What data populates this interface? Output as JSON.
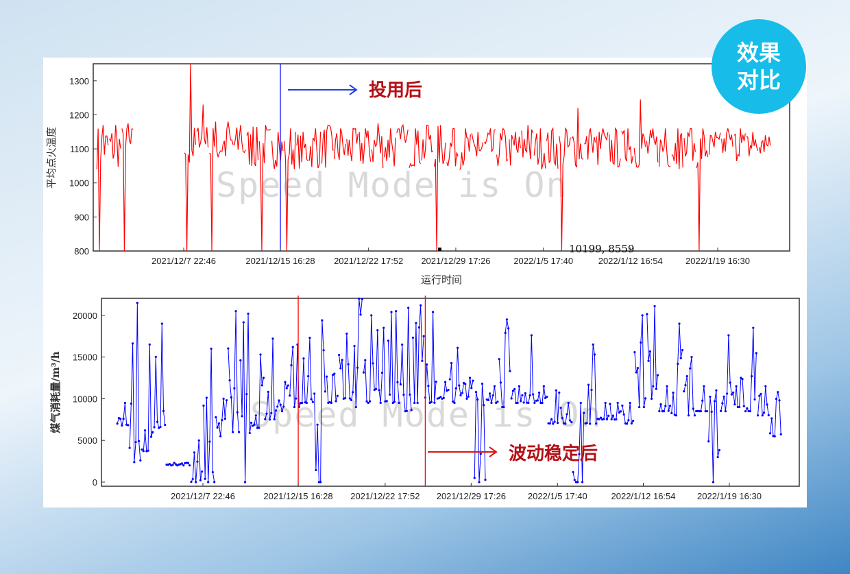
{
  "badge": {
    "line1": "效果",
    "line2": "对比",
    "color": "#17bde8"
  },
  "chart_data": [
    {
      "type": "line",
      "ylabel": "平均点火温度",
      "xlabel": "运行时间",
      "ylim": [
        800,
        1350
      ],
      "y_ticks": [
        "800",
        "900",
        "1000",
        "1100",
        "1200",
        "1300"
      ],
      "x_ticks": [
        "2021/12/7 22:46",
        "2021/12/15 16:28",
        "2021/12/22 17:52",
        "2021/12/29 17:26",
        "2022/1/5 17:40",
        "2022/1/12 16:54",
        "2022/1/19 16:30"
      ],
      "series_color": "#ff0000",
      "marker_line": {
        "date": "2021-12-15 16:28",
        "color": "#0000ff"
      },
      "annotation": {
        "text": "投用后",
        "color": "#b50f16"
      },
      "readout": "10199, 8559",
      "watermark": "Speed Mode is On",
      "daily_range_note": "daily low/high",
      "data": [
        [
          "2021-12-01",
          800,
          1170
        ],
        [
          "2021-12-02",
          990,
          1170
        ],
        [
          "2021-12-03",
          800,
          1175
        ],
        [
          "2021-12-04",
          null,
          null
        ],
        [
          "2021-12-05",
          null,
          null
        ],
        [
          "2021-12-06",
          null,
          null
        ],
        [
          "2021-12-07",
          null,
          null
        ],
        [
          "2021-12-08",
          800,
          1350
        ],
        [
          "2021-12-09",
          1100,
          1230
        ],
        [
          "2021-12-10",
          800,
          1180
        ],
        [
          "2021-12-11",
          1050,
          1180
        ],
        [
          "2021-12-12",
          1050,
          1170
        ],
        [
          "2021-12-13",
          1040,
          1165
        ],
        [
          "2021-12-14",
          800,
          1170
        ],
        [
          "2021-12-15",
          950,
          1150
        ],
        [
          "2021-12-16",
          800,
          1160
        ],
        [
          "2021-12-17",
          1030,
          1150
        ],
        [
          "2021-12-18",
          1030,
          1160
        ],
        [
          "2021-12-19",
          1020,
          1170
        ],
        [
          "2021-12-20",
          1000,
          1160
        ],
        [
          "2021-12-21",
          1020,
          1160
        ],
        [
          "2021-12-22",
          1000,
          1160
        ],
        [
          "2021-12-23",
          1020,
          1175
        ],
        [
          "2021-12-24",
          1020,
          1160
        ],
        [
          "2021-12-25",
          1030,
          1170
        ],
        [
          "2021-12-26",
          1000,
          1160
        ],
        [
          "2021-12-27",
          1030,
          1170
        ],
        [
          "2021-12-28",
          800,
          1170
        ],
        [
          "2021-12-29",
          1030,
          1160
        ],
        [
          "2021-12-30",
          1040,
          1160
        ],
        [
          "2021-12-31",
          1030,
          1150
        ],
        [
          "2022-01-01",
          1010,
          1160
        ],
        [
          "2022-01-02",
          1030,
          1160
        ],
        [
          "2022-01-03",
          1020,
          1150
        ],
        [
          "2022-01-04",
          1020,
          1170
        ],
        [
          "2022-01-05",
          1030,
          1160
        ],
        [
          "2022-01-06",
          1020,
          1160
        ],
        [
          "2022-01-07",
          800,
          1160
        ],
        [
          "2022-01-08",
          1040,
          1220
        ],
        [
          "2022-01-09",
          1030,
          1160
        ],
        [
          "2022-01-10",
          1020,
          1160
        ],
        [
          "2022-01-11",
          1040,
          1160
        ],
        [
          "2022-01-12",
          1030,
          1160
        ],
        [
          "2022-01-13",
          1040,
          1245
        ],
        [
          "2022-01-14",
          1040,
          1160
        ],
        [
          "2022-01-15",
          1040,
          1160
        ],
        [
          "2022-01-16",
          1040,
          1160
        ],
        [
          "2022-01-17",
          1040,
          1160
        ],
        [
          "2022-01-18",
          800,
          1160
        ],
        [
          "2022-01-19",
          1060,
          1150
        ],
        [
          "2022-01-20",
          1060,
          1160
        ],
        [
          "2022-01-21",
          1060,
          1160
        ],
        [
          "2022-01-22",
          1060,
          1150
        ],
        [
          "2022-01-23",
          1070,
          1140
        ]
      ]
    },
    {
      "type": "line",
      "ylabel": "煤气消耗量/m³/h",
      "xlabel": "",
      "ylim": [
        0,
        22000
      ],
      "y_ticks": [
        "0",
        "5000",
        "10000",
        "15000",
        "20000"
      ],
      "x_ticks": [
        "2021/12/7 22:46",
        "2021/12/15 16:28",
        "2021/12/22 17:52",
        "2021/12/29 17:26",
        "2022/1/5 17:40",
        "2022/1/12 16:54",
        "2022/1/19 16:30"
      ],
      "series_color": "#0000ff",
      "marker_lines": [
        {
          "date": "2021-12-15 16:28",
          "color": "#ff0000"
        },
        {
          "date": "2021-12-26 00:00",
          "color": "#ff0000"
        }
      ],
      "annotation": {
        "text": "波动稳定后",
        "color": "#b50f16"
      },
      "watermark": "Speed Mode is On",
      "data": [
        [
          "2021-12-01",
          6800,
          9500
        ],
        [
          "2021-12-02",
          2400,
          21500
        ],
        [
          "2021-12-03",
          3700,
          16500
        ],
        [
          "2021-12-04",
          6500,
          19000
        ],
        [
          "2021-12-05",
          2000,
          2300
        ],
        [
          "2021-12-06",
          2000,
          2300
        ],
        [
          "2021-12-07",
          0,
          5000
        ],
        [
          "2021-12-08",
          0,
          16000
        ],
        [
          "2021-12-09",
          5500,
          10000
        ],
        [
          "2021-12-10",
          6000,
          20500
        ],
        [
          "2021-12-11",
          0,
          20200
        ],
        [
          "2021-12-12",
          6500,
          15300
        ],
        [
          "2021-12-13",
          7500,
          17200
        ],
        [
          "2021-12-14",
          8500,
          12000
        ],
        [
          "2021-12-15",
          9000,
          16500
        ],
        [
          "2021-12-16",
          9500,
          17300
        ],
        [
          "2021-12-17",
          0,
          19400
        ],
        [
          "2021-12-18",
          9500,
          13000
        ],
        [
          "2021-12-19",
          10000,
          17800
        ],
        [
          "2021-12-20",
          9000,
          22000
        ],
        [
          "2021-12-21",
          9500,
          20000
        ],
        [
          "2021-12-22",
          9500,
          18500
        ],
        [
          "2021-12-23",
          9500,
          20500
        ],
        [
          "2021-12-24",
          8500,
          20900
        ],
        [
          "2021-12-25",
          9500,
          21200
        ],
        [
          "2021-12-26",
          9500,
          20400
        ],
        [
          "2021-12-27",
          10000,
          12000
        ],
        [
          "2021-12-28",
          9500,
          16100
        ],
        [
          "2021-12-29",
          10000,
          12500
        ],
        [
          "2021-12-30",
          0,
          11800
        ],
        [
          "2021-12-31",
          9500,
          11500
        ],
        [
          "2022-01-01",
          9000,
          19500
        ],
        [
          "2022-01-02",
          9500,
          11500
        ],
        [
          "2022-01-03",
          9500,
          17600
        ],
        [
          "2022-01-04",
          9500,
          11500
        ],
        [
          "2022-01-05",
          7000,
          11000
        ],
        [
          "2022-01-06",
          7000,
          9500
        ],
        [
          "2022-01-07",
          0,
          9500
        ],
        [
          "2022-01-08",
          7000,
          16500
        ],
        [
          "2022-01-09",
          7500,
          9500
        ],
        [
          "2022-01-10",
          7500,
          9500
        ],
        [
          "2022-01-11",
          7000,
          9500
        ],
        [
          "2022-01-12",
          9000,
          20000
        ],
        [
          "2022-01-13",
          10000,
          21100
        ],
        [
          "2022-01-14",
          8500,
          11500
        ],
        [
          "2022-01-15",
          8000,
          19000
        ],
        [
          "2022-01-16",
          8000,
          15000
        ],
        [
          "2022-01-17",
          8500,
          11500
        ],
        [
          "2022-01-18",
          0,
          11000
        ],
        [
          "2022-01-19",
          8500,
          17600
        ],
        [
          "2022-01-20",
          9000,
          12500
        ],
        [
          "2022-01-21",
          8500,
          18500
        ],
        [
          "2022-01-22",
          8000,
          11500
        ],
        [
          "2022-01-23",
          5500,
          10800
        ]
      ]
    }
  ]
}
